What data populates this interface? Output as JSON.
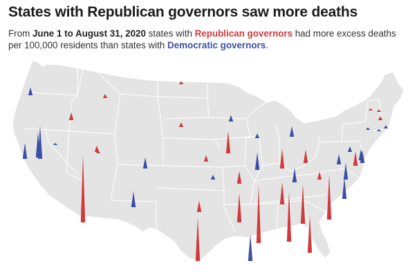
{
  "title": "States with Republican governors saw more deaths",
  "subtitle": {
    "p1": "From ",
    "period": "June 1 to August 31, 2020",
    "p2": " states with ",
    "rep_label": "Republican governors",
    "p3": " had more excess deaths per 100,000 residents than states with ",
    "dem_label": "Democratic governors",
    "p4": "."
  },
  "colors": {
    "republican": "#d03a3a",
    "democratic": "#3b4ea6",
    "land": "#e4e4e4",
    "border": "#ffffff"
  },
  "map_type": "US states map with spike markers (height = excess deaths per 100,000 residents, relative)",
  "spikes": [
    {
      "state": "WA",
      "party": "democratic",
      "size": 1.0
    },
    {
      "state": "OR",
      "party": "democratic",
      "size": 2.0
    },
    {
      "state": "CA-N",
      "party": "democratic",
      "size": 3.2
    },
    {
      "state": "CA-S",
      "party": "democratic",
      "size": 4.2
    },
    {
      "state": "NV",
      "party": "democratic",
      "size": 0.1
    },
    {
      "state": "ID",
      "party": "republican",
      "size": 1.0
    },
    {
      "state": "MT",
      "party": "republican",
      "size": 0.5
    },
    {
      "state": "WY",
      "party": "republican",
      "size": 0.4
    },
    {
      "state": "UT",
      "party": "republican",
      "size": 0.8
    },
    {
      "state": "AZ",
      "party": "republican",
      "size": 8.5
    },
    {
      "state": "CO",
      "party": "democratic",
      "size": 1.4
    },
    {
      "state": "NM",
      "party": "democratic",
      "size": 2.0
    },
    {
      "state": "ND",
      "party": "republican",
      "size": 0.4
    },
    {
      "state": "SD",
      "party": "republican",
      "size": 0.6
    },
    {
      "state": "NE",
      "party": "republican",
      "size": 0.8
    },
    {
      "state": "KS",
      "party": "democratic",
      "size": 0.6
    },
    {
      "state": "OK",
      "party": "republican",
      "size": 1.4
    },
    {
      "state": "TX",
      "party": "republican",
      "size": 5.5
    },
    {
      "state": "MN",
      "party": "democratic",
      "size": 0.8
    },
    {
      "state": "IA",
      "party": "republican",
      "size": 2.8
    },
    {
      "state": "MO",
      "party": "republican",
      "size": 1.6
    },
    {
      "state": "AR",
      "party": "republican",
      "size": 3.7
    },
    {
      "state": "LA",
      "party": "democratic",
      "size": 3.4
    },
    {
      "state": "WI",
      "party": "democratic",
      "size": 0.6
    },
    {
      "state": "IL",
      "party": "democratic",
      "size": 2.2
    },
    {
      "state": "MI",
      "party": "democratic",
      "size": 1.3
    },
    {
      "state": "IN",
      "party": "republican",
      "size": 2.5
    },
    {
      "state": "KY",
      "party": "democratic",
      "size": 1.8
    },
    {
      "state": "TN",
      "party": "republican",
      "size": 2.8
    },
    {
      "state": "MS",
      "party": "republican",
      "size": 7.2
    },
    {
      "state": "AL",
      "party": "republican",
      "size": 6.3
    },
    {
      "state": "GA",
      "party": "republican",
      "size": 5.0
    },
    {
      "state": "FL",
      "party": "republican",
      "size": 4.6
    },
    {
      "state": "SC",
      "party": "republican",
      "size": 5.6
    },
    {
      "state": "NC",
      "party": "democratic",
      "size": 2.7
    },
    {
      "state": "VA",
      "party": "democratic",
      "size": 2.1
    },
    {
      "state": "WV",
      "party": "republican",
      "size": 1.0
    },
    {
      "state": "OH",
      "party": "republican",
      "size": 1.7
    },
    {
      "state": "PA",
      "party": "democratic",
      "size": 1.3
    },
    {
      "state": "MD",
      "party": "republican",
      "size": 1.8
    },
    {
      "state": "DE",
      "party": "democratic",
      "size": 1.6
    },
    {
      "state": "NJ",
      "party": "democratic",
      "size": 1.4
    },
    {
      "state": "NY",
      "party": "democratic",
      "size": 0.7
    },
    {
      "state": "CT",
      "party": "democratic",
      "size": 0.3
    },
    {
      "state": "RI",
      "party": "democratic",
      "size": 0.4
    },
    {
      "state": "MA",
      "party": "republican",
      "size": 0.5
    },
    {
      "state": "VT",
      "party": "republican",
      "size": 0.2
    },
    {
      "state": "NH",
      "party": "republican",
      "size": 0.3
    },
    {
      "state": "ME",
      "party": "democratic",
      "size": 0.2
    }
  ]
}
